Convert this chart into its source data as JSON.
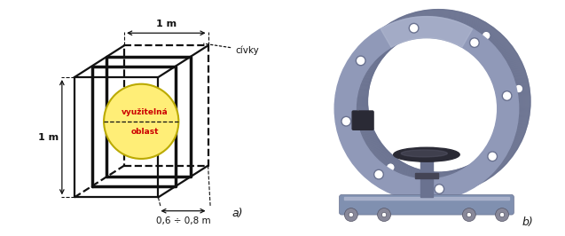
{
  "fig_width": 6.37,
  "fig_height": 2.66,
  "dpi": 100,
  "bg_color": "#ffffff",
  "panel_a": {
    "label": "a)",
    "dim_top": "1 m",
    "dim_left": "1 m",
    "dim_depth": "0,6 ÷ 0,8 m",
    "annotation_civky": "cívky",
    "circle_text_line1": "využitelná",
    "circle_text_line2": "oblast",
    "circle_color": "#ffee77",
    "circle_edge_color": "#bbaa00",
    "box_color": "#111111",
    "text_color_red": "#cc0000"
  },
  "panel_b": {
    "label": "b)",
    "ring_color": "#9099b8",
    "ring_dark": "#6a7290",
    "ring_light": "#b0b8d0",
    "bg_color": "#f0f0f8",
    "black": "#111111",
    "base_color": "#8090b0"
  }
}
